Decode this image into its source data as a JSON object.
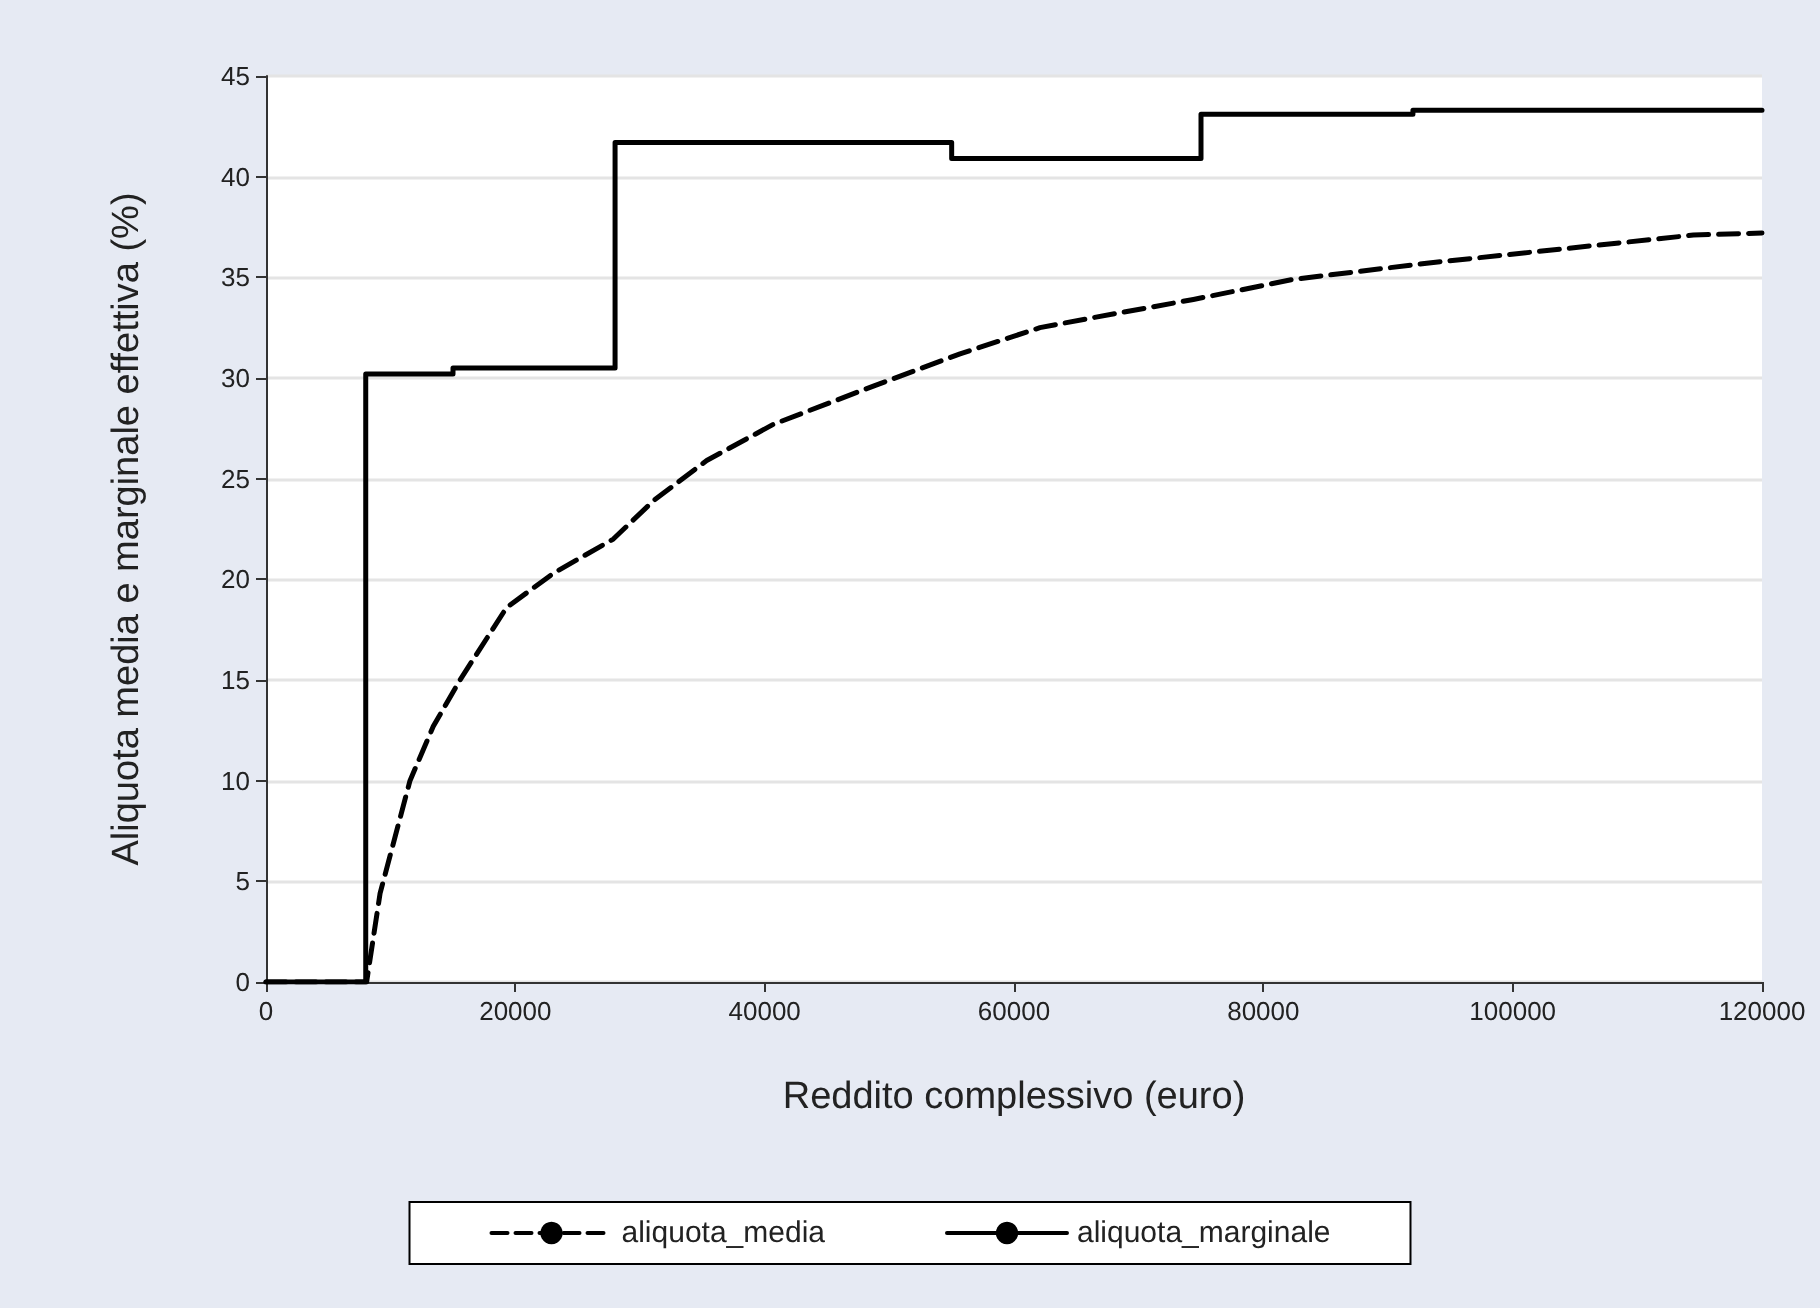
{
  "chart_data": {
    "type": "line",
    "xlabel": "Reddito complessivo (euro)",
    "ylabel": "Aliquota media e marginale effettiva (%)",
    "xlim": [
      0,
      120000
    ],
    "xticks": [
      0,
      20000,
      40000,
      60000,
      80000,
      100000,
      120000
    ],
    "ylim": [
      0,
      45
    ],
    "yticks": [
      0,
      5,
      10,
      15,
      20,
      25,
      30,
      35,
      40,
      45
    ],
    "grid": "y",
    "legend": "bottom",
    "marker": "none",
    "series": [
      {
        "name": "aliquota_media",
        "color": "#000000",
        "line_style": "dashed",
        "x": [
          0,
          8070,
          9150,
          11550,
          13420,
          15560,
          19300,
          23050,
          27860,
          31070,
          35350,
          40700,
          48720,
          55670,
          62080,
          66370,
          74390,
          82410,
          93100,
          103800,
          114500,
          120000
        ],
        "values": [
          0,
          0,
          4.4,
          10.0,
          12.7,
          15.0,
          18.6,
          20.3,
          22.0,
          23.9,
          25.9,
          27.7,
          29.6,
          31.2,
          32.5,
          33.0,
          33.9,
          34.9,
          35.7,
          36.4,
          37.1,
          37.2
        ]
      },
      {
        "name": "aliquota_marginale",
        "color": "#000000",
        "line_style": "solid",
        "x": [
          0,
          8000,
          8000,
          15000,
          15000,
          28000,
          28000,
          55000,
          55000,
          75000,
          75000,
          92000,
          92000,
          120000
        ],
        "values": [
          0,
          0,
          30.2,
          30.2,
          30.5,
          30.5,
          41.7,
          41.7,
          40.9,
          40.9,
          43.1,
          43.1,
          43.3,
          43.3
        ]
      }
    ]
  }
}
